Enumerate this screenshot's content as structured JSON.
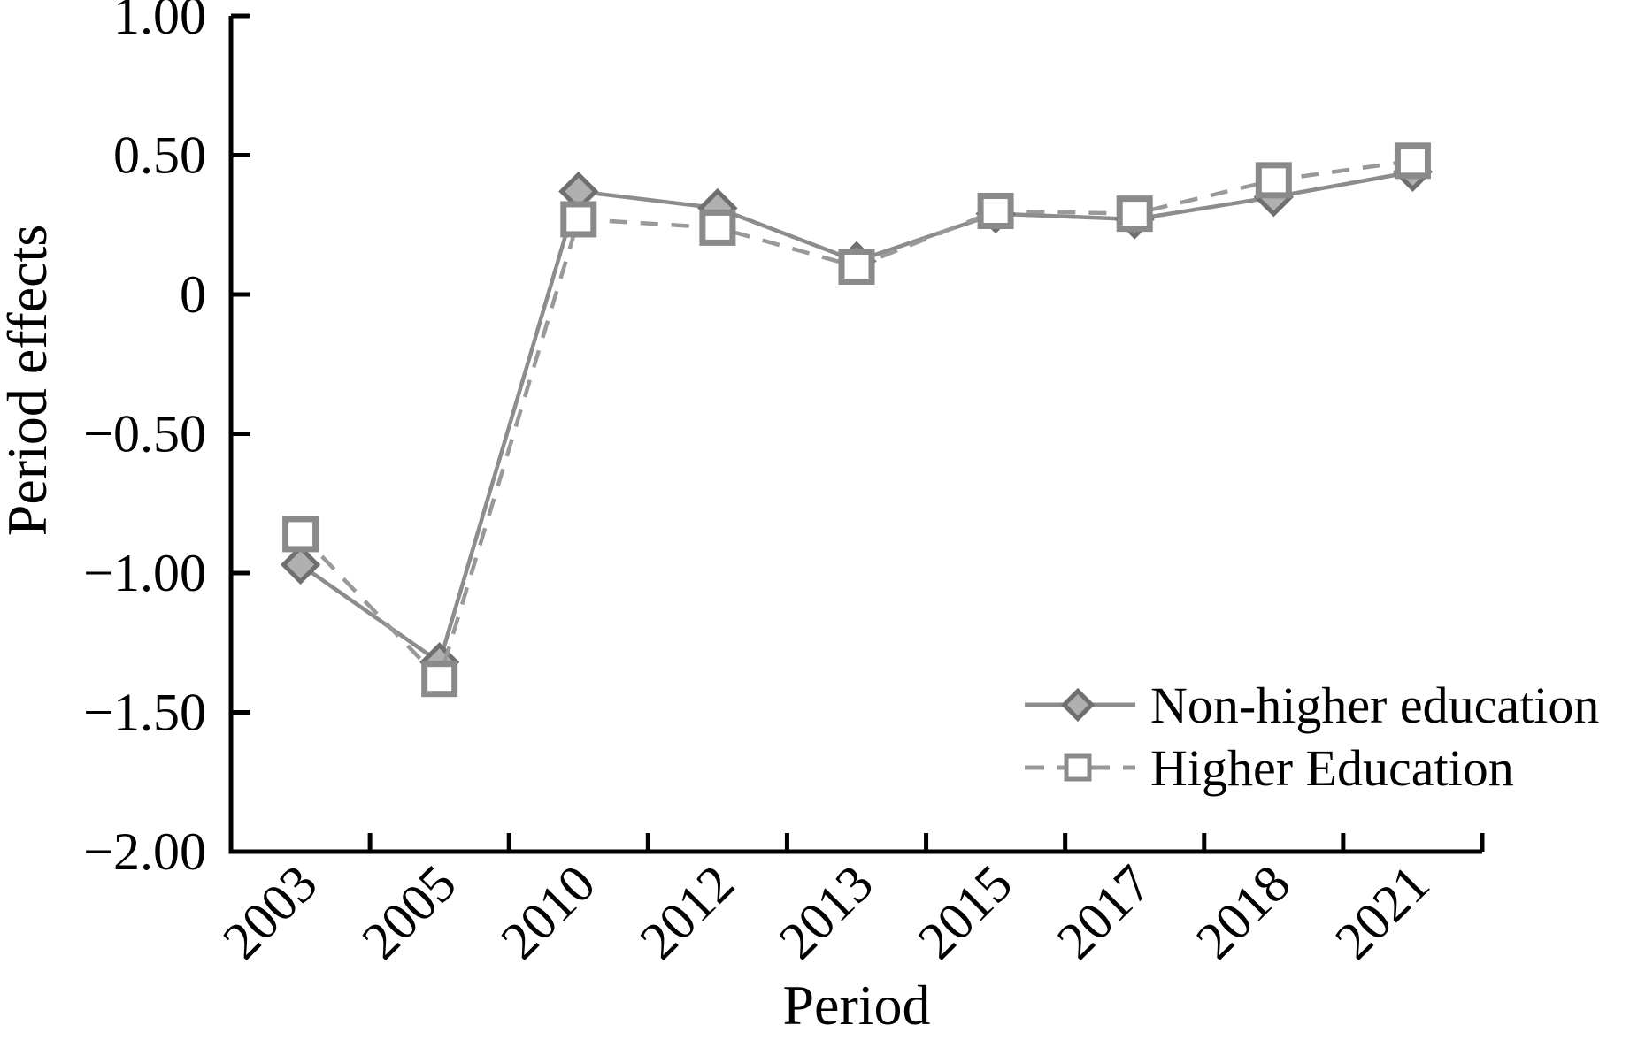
{
  "chart_data": {
    "type": "line",
    "title": "",
    "xlabel": "Period",
    "ylabel": "Period effects",
    "categories": [
      "2003",
      "2005",
      "2010",
      "2012",
      "2013",
      "2015",
      "2017",
      "2018",
      "2021"
    ],
    "series": [
      {
        "name": "Non-higher education",
        "marker": "diamond",
        "line_style": "solid",
        "values": [
          -0.97,
          -1.32,
          0.37,
          0.31,
          0.12,
          0.29,
          0.27,
          0.35,
          0.44
        ],
        "line_color": "#8c8c8c",
        "marker_fill": "#b0b0b0",
        "marker_stroke": "#6f6f6f"
      },
      {
        "name": "Higher Education",
        "marker": "square",
        "line_style": "dashed",
        "values": [
          -0.86,
          -1.38,
          0.27,
          0.24,
          0.1,
          0.3,
          0.29,
          0.41,
          0.48
        ],
        "line_color": "#999999",
        "marker_fill": "#ffffff",
        "marker_stroke": "#8a8a8a"
      }
    ],
    "ylim": [
      -2.0,
      1.0
    ],
    "yticks": [
      {
        "label": "1.00",
        "value": 1.0
      },
      {
        "label": "0.50",
        "value": 0.5
      },
      {
        "label": "0",
        "value": 0.0
      },
      {
        "label": "−0.50",
        "value": -0.5
      },
      {
        "label": "−1.00",
        "value": -1.0
      },
      {
        "label": "−1.50",
        "value": -1.5
      },
      {
        "label": "−2.00",
        "value": -2.0
      }
    ],
    "grid": false,
    "legend_position": "inside-lower-right",
    "axis_color": "#000000"
  }
}
